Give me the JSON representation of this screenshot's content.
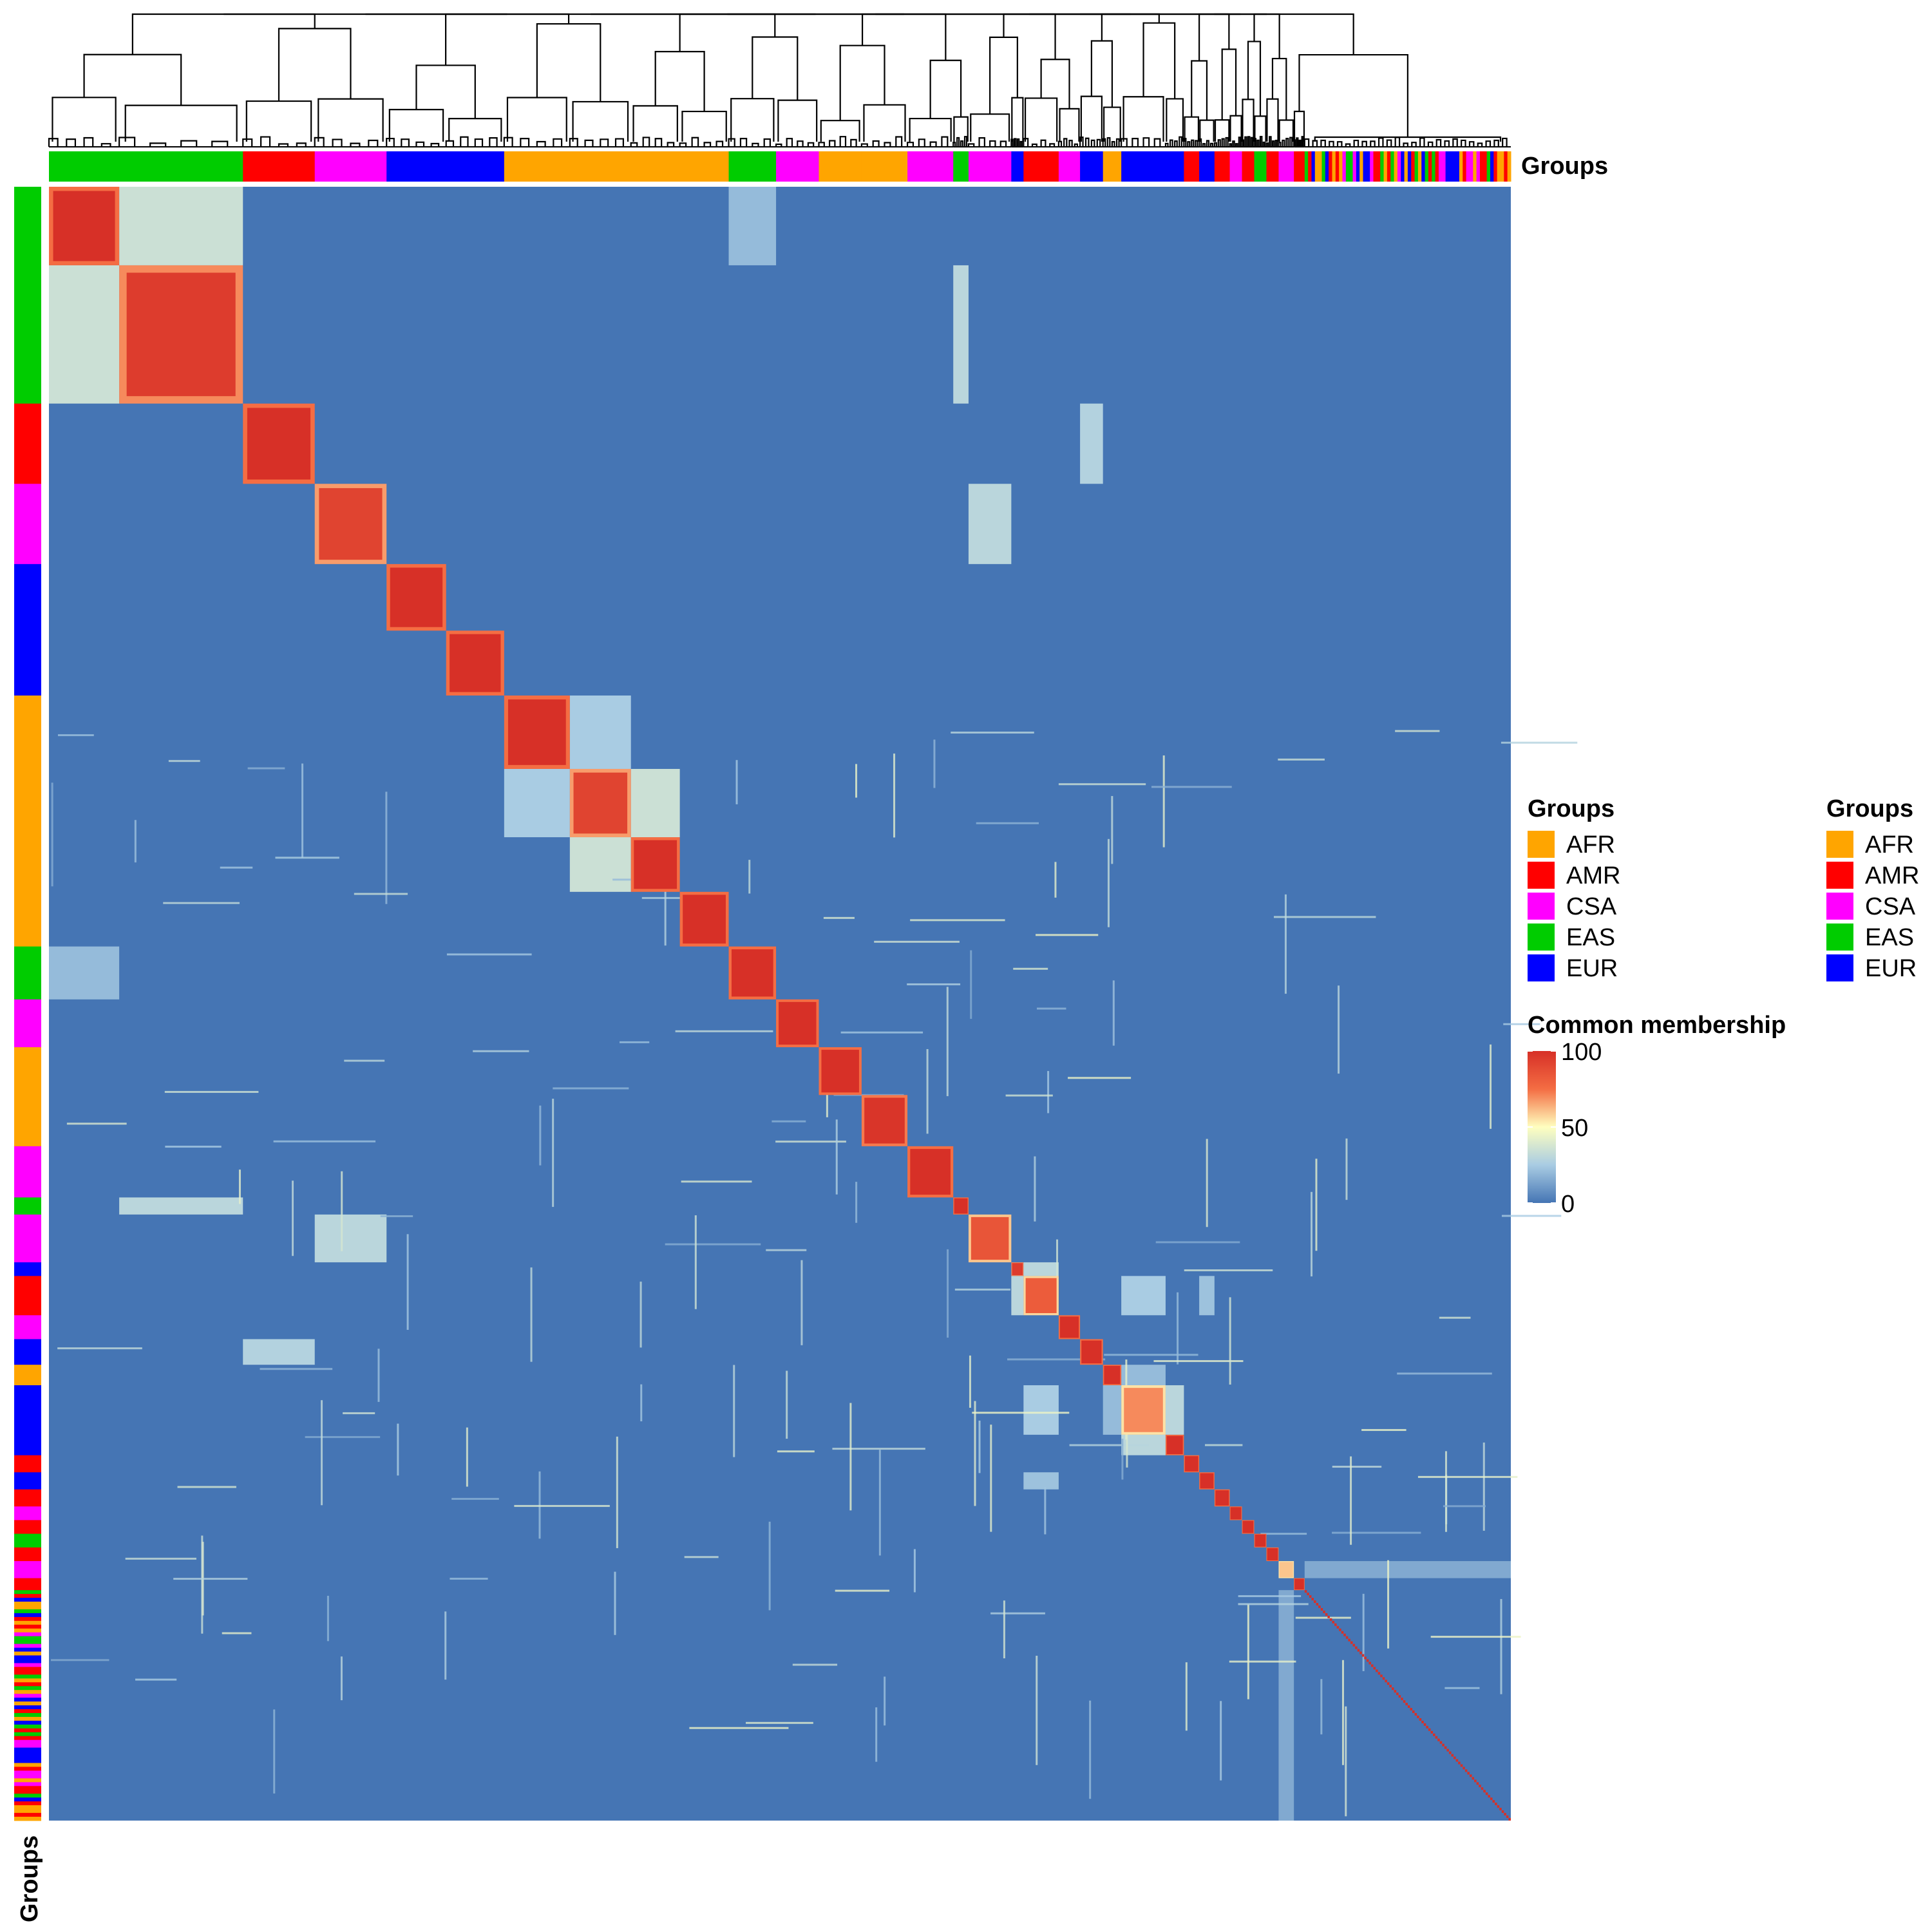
{
  "chart_data": {
    "type": "heatmap",
    "title": "",
    "colorbar": {
      "title": "Common membership",
      "range": [
        0,
        100
      ],
      "ticks": [
        0,
        50,
        100
      ],
      "stops": [
        {
          "value": 0,
          "color": "#4575b4"
        },
        {
          "value": 25,
          "color": "#a9cce3"
        },
        {
          "value": 50,
          "color": "#ffffbf"
        },
        {
          "value": 75,
          "color": "#f46d43"
        },
        {
          "value": 100,
          "color": "#d73027"
        }
      ]
    },
    "annotation": {
      "top_label": "Groups",
      "left_label": "Groups",
      "categories": [
        "AFR",
        "AMR",
        "CSA",
        "EAS",
        "EUR"
      ],
      "colors": {
        "AFR": "#FFA500",
        "AMR": "#FF0000",
        "CSA": "#FF00FF",
        "EAS": "#00CC00",
        "EUR": "#0000FF"
      }
    },
    "legends": [
      {
        "title": "Groups",
        "items": [
          "AFR",
          "AMR",
          "CSA",
          "EAS",
          "EUR"
        ]
      },
      {
        "title": "Groups",
        "items": [
          "AFR",
          "AMR",
          "CSA",
          "EAS",
          "EUR"
        ]
      }
    ],
    "clusters": [
      {
        "group": "EAS",
        "size": 0.046,
        "within": 100
      },
      {
        "group": "EAS",
        "size": 0.081,
        "within": 95
      },
      {
        "group": "AMR",
        "size": 0.047,
        "within": 100
      },
      {
        "group": "CSA",
        "size": 0.047,
        "within": 92
      },
      {
        "group": "EUR",
        "size": 0.039,
        "within": 100
      },
      {
        "group": "EUR",
        "size": 0.038,
        "within": 100
      },
      {
        "group": "AFR",
        "size": 0.043,
        "within": 100
      },
      {
        "group": "AFR",
        "size": 0.04,
        "within": 92
      },
      {
        "group": "AFR",
        "size": 0.032,
        "within": 100
      },
      {
        "group": "AFR",
        "size": 0.032,
        "within": 100
      },
      {
        "group": "EAS",
        "size": 0.031,
        "within": 100
      },
      {
        "group": "CSA",
        "size": 0.028,
        "within": 100
      },
      {
        "group": "AFR",
        "size": 0.028,
        "within": 100
      },
      {
        "group": "AFR",
        "size": 0.03,
        "within": 98
      },
      {
        "group": "CSA",
        "size": 0.03,
        "within": 100
      },
      {
        "group": "EAS",
        "size": 0.01,
        "within": 100
      },
      {
        "group": "CSA",
        "size": 0.028,
        "within": 85
      },
      {
        "group": "EUR",
        "size": 0.008,
        "within": 95
      },
      {
        "group": "AMR",
        "size": 0.023,
        "within": 82
      },
      {
        "group": "CSA",
        "size": 0.014,
        "within": 100
      },
      {
        "group": "EUR",
        "size": 0.015,
        "within": 100
      },
      {
        "group": "AFR",
        "size": 0.012,
        "within": 100
      },
      {
        "group": "EUR",
        "size": 0.029,
        "within": 70
      },
      {
        "group": "EUR",
        "size": 0.012,
        "within": 100
      },
      {
        "group": "AMR",
        "size": 0.01,
        "within": 100
      },
      {
        "group": "EUR",
        "size": 0.01,
        "within": 100
      },
      {
        "group": "AMR",
        "size": 0.01,
        "within": 100
      },
      {
        "group": "CSA",
        "size": 0.008,
        "within": 100
      },
      {
        "group": "AMR",
        "size": 0.008,
        "within": 100
      },
      {
        "group": "EAS",
        "size": 0.008,
        "within": 100
      },
      {
        "group": "AMR",
        "size": 0.008,
        "within": 100
      },
      {
        "group": "CSA",
        "size": 0.01,
        "within": 60
      },
      {
        "group": "AMR",
        "size": 0.007,
        "within": 100
      },
      {
        "group": "mixed",
        "size": 0.135,
        "within": 100
      }
    ],
    "off_diagonal_blocks": [
      {
        "a": 0,
        "b": 1,
        "value": 35
      },
      {
        "a": 3,
        "b": 16,
        "value": 30
      },
      {
        "a": 7,
        "b": 8,
        "value": 35
      },
      {
        "a": 6,
        "b": 7,
        "value": 25
      },
      {
        "a": 1,
        "b": 15,
        "value": 30
      },
      {
        "a": 0,
        "b": 10,
        "value": 20
      },
      {
        "a": 17,
        "b": 18,
        "value": 30
      },
      {
        "a": 18,
        "b": 22,
        "value": 25
      },
      {
        "a": 22,
        "b": 23,
        "value": 30
      },
      {
        "a": 21,
        "b": 22,
        "value": 20
      },
      {
        "a": 2,
        "b": 20,
        "value": 28
      },
      {
        "a": 18,
        "b": 25,
        "value": 22
      },
      {
        "a": 31,
        "b": 33,
        "value": 15
      }
    ]
  }
}
